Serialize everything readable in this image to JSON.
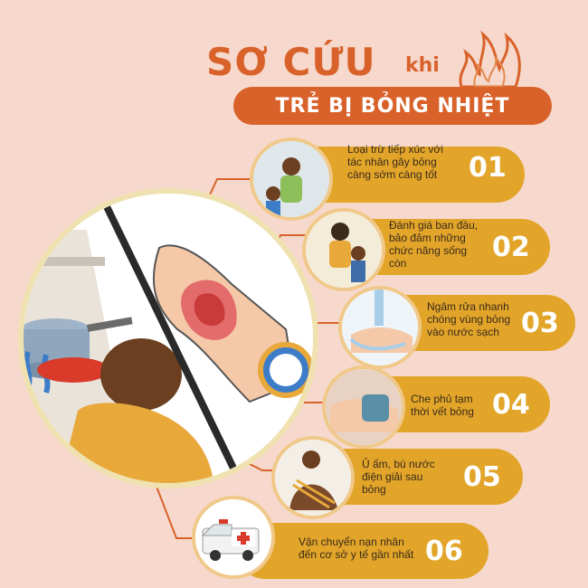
{
  "title": {
    "main": "SƠ CỨU",
    "connector": "khi",
    "banner": "TRẺ BỊ BỎNG NHIỆT"
  },
  "steps": [
    {
      "number": "01",
      "text": "Loại trừ tiếp xúc với tác nhân gây bỏng càng sớm càng tốt"
    },
    {
      "number": "02",
      "text": "Đánh giá ban đầu, bảo đảm những chức năng sống còn"
    },
    {
      "number": "03",
      "text": "Ngâm rửa nhanh chóng vùng bỏng vào nước sạch"
    },
    {
      "number": "04",
      "text": "Che phủ tạm thời vết bỏng"
    },
    {
      "number": "05",
      "text": "Ủ ấm, bù nước điện giải sau bỏng"
    },
    {
      "number": "06",
      "text": "Vận chuyển nạn nhân đến cơ sở y tế gần nhất"
    }
  ],
  "colors": {
    "background": "#f6d9cc",
    "accent": "#d9622b",
    "pill": "#e2a52a",
    "ring": "#f0c88a"
  },
  "icons": [
    "flame-icon",
    "ambulance-icon",
    "burned-hand-icon",
    "boiling-pot-icon"
  ]
}
